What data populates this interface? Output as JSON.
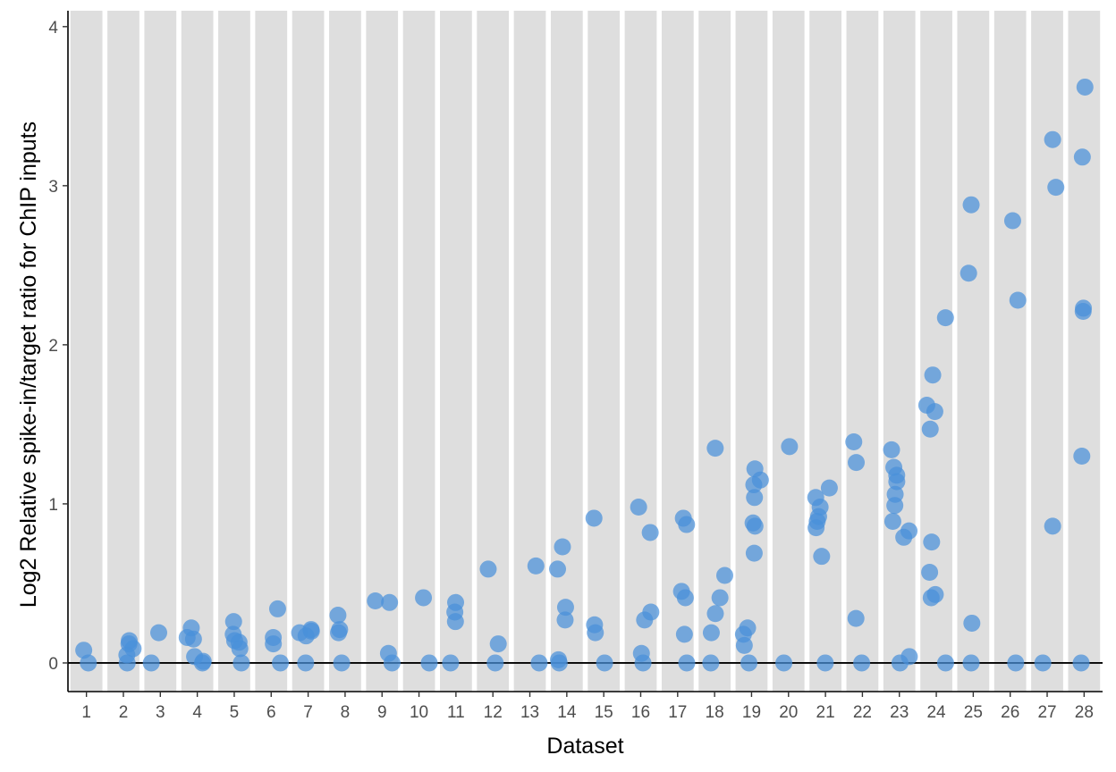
{
  "chart_data": {
    "type": "scatter",
    "xlabel": "Dataset",
    "ylabel": "Log2 Relative spike-in/target ratio for ChIP inputs",
    "categories": [
      "1",
      "2",
      "3",
      "4",
      "5",
      "6",
      "7",
      "8",
      "9",
      "10",
      "11",
      "12",
      "13",
      "14",
      "15",
      "16",
      "17",
      "18",
      "19",
      "20",
      "21",
      "22",
      "23",
      "24",
      "25",
      "26",
      "27",
      "28"
    ],
    "ylim": [
      -0.18,
      4.1
    ],
    "yticks": [
      0,
      1,
      2,
      3,
      4
    ],
    "ytick_labels": [
      "0",
      "1",
      "2",
      "3",
      "4"
    ],
    "reference_line_y": 0,
    "background_bands": true,
    "colors": {
      "point": "#4a90d9",
      "band": "#dedede",
      "axis": "#000000"
    },
    "series": [
      {
        "values": [
          [
            1,
            0
          ],
          [
            1,
            0.08
          ],
          [
            2,
            0
          ],
          [
            2,
            0.05
          ],
          [
            2,
            0.09
          ],
          [
            2,
            0.12
          ],
          [
            2,
            0.14
          ],
          [
            3,
            0
          ],
          [
            3,
            0.19
          ],
          [
            4,
            0
          ],
          [
            4,
            0.01
          ],
          [
            4,
            0.04
          ],
          [
            4,
            0.15
          ],
          [
            4,
            0.16
          ],
          [
            4,
            0.22
          ],
          [
            5,
            0
          ],
          [
            5,
            0.09
          ],
          [
            5,
            0.13
          ],
          [
            5,
            0.14
          ],
          [
            5,
            0.18
          ],
          [
            5,
            0.26
          ],
          [
            6,
            0
          ],
          [
            6,
            0.12
          ],
          [
            6,
            0.16
          ],
          [
            6,
            0.34
          ],
          [
            7,
            0
          ],
          [
            7,
            0.17
          ],
          [
            7,
            0.19
          ],
          [
            7,
            0.2
          ],
          [
            7,
            0.21
          ],
          [
            8,
            0
          ],
          [
            8,
            0.19
          ],
          [
            8,
            0.21
          ],
          [
            8,
            0.3
          ],
          [
            9,
            0
          ],
          [
            9,
            0.06
          ],
          [
            9,
            0.38
          ],
          [
            9,
            0.39
          ],
          [
            10,
            0
          ],
          [
            10,
            0.41
          ],
          [
            11,
            0
          ],
          [
            11,
            0.26
          ],
          [
            11,
            0.32
          ],
          [
            11,
            0.38
          ],
          [
            12,
            0
          ],
          [
            12,
            0.12
          ],
          [
            12,
            0.59
          ],
          [
            13,
            0
          ],
          [
            13,
            0.61
          ],
          [
            14,
            0
          ],
          [
            14,
            0.02
          ],
          [
            14,
            0.27
          ],
          [
            14,
            0.35
          ],
          [
            14,
            0.59
          ],
          [
            14,
            0.73
          ],
          [
            15,
            0
          ],
          [
            15,
            0.19
          ],
          [
            15,
            0.24
          ],
          [
            15,
            0.91
          ],
          [
            16,
            0
          ],
          [
            16,
            0.06
          ],
          [
            16,
            0.27
          ],
          [
            16,
            0.32
          ],
          [
            16,
            0.82
          ],
          [
            16,
            0.98
          ],
          [
            17,
            0
          ],
          [
            17,
            0.18
          ],
          [
            17,
            0.41
          ],
          [
            17,
            0.45
          ],
          [
            17,
            0.87
          ],
          [
            17,
            0.91
          ],
          [
            18,
            0
          ],
          [
            18,
            0.19
          ],
          [
            18,
            0.31
          ],
          [
            18,
            0.41
          ],
          [
            18,
            0.55
          ],
          [
            18,
            1.35
          ],
          [
            19,
            0
          ],
          [
            19,
            0.11
          ],
          [
            19,
            0.18
          ],
          [
            19,
            0.22
          ],
          [
            19,
            0.69
          ],
          [
            19,
            0.86
          ],
          [
            19,
            0.88
          ],
          [
            19,
            1.04
          ],
          [
            19,
            1.12
          ],
          [
            19,
            1.15
          ],
          [
            19,
            1.22
          ],
          [
            20,
            0
          ],
          [
            20,
            1.36
          ],
          [
            21,
            0
          ],
          [
            21,
            0.67
          ],
          [
            21,
            0.85
          ],
          [
            21,
            0.89
          ],
          [
            21,
            0.92
          ],
          [
            21,
            0.98
          ],
          [
            21,
            1.04
          ],
          [
            21,
            1.1
          ],
          [
            22,
            0
          ],
          [
            22,
            0.28
          ],
          [
            22,
            1.26
          ],
          [
            22,
            1.39
          ],
          [
            23,
            0
          ],
          [
            23,
            0.04
          ],
          [
            23,
            0.79
          ],
          [
            23,
            0.83
          ],
          [
            23,
            0.89
          ],
          [
            23,
            0.99
          ],
          [
            23,
            1.06
          ],
          [
            23,
            1.14
          ],
          [
            23,
            1.18
          ],
          [
            23,
            1.23
          ],
          [
            23,
            1.34
          ],
          [
            24,
            0
          ],
          [
            24,
            0.41
          ],
          [
            24,
            0.43
          ],
          [
            24,
            0.57
          ],
          [
            24,
            0.76
          ],
          [
            24,
            1.47
          ],
          [
            24,
            1.58
          ],
          [
            24,
            1.62
          ],
          [
            24,
            1.81
          ],
          [
            24,
            2.17
          ],
          [
            25,
            0
          ],
          [
            25,
            0.25
          ],
          [
            25,
            2.45
          ],
          [
            25,
            2.88
          ],
          [
            26,
            0
          ],
          [
            26,
            2.28
          ],
          [
            26,
            2.78
          ],
          [
            27,
            0
          ],
          [
            27,
            0.86
          ],
          [
            27,
            2.99
          ],
          [
            27,
            3.29
          ],
          [
            28,
            0
          ],
          [
            28,
            1.3
          ],
          [
            28,
            2.21
          ],
          [
            28,
            2.23
          ],
          [
            28,
            3.18
          ],
          [
            28,
            3.62
          ]
        ]
      }
    ]
  }
}
